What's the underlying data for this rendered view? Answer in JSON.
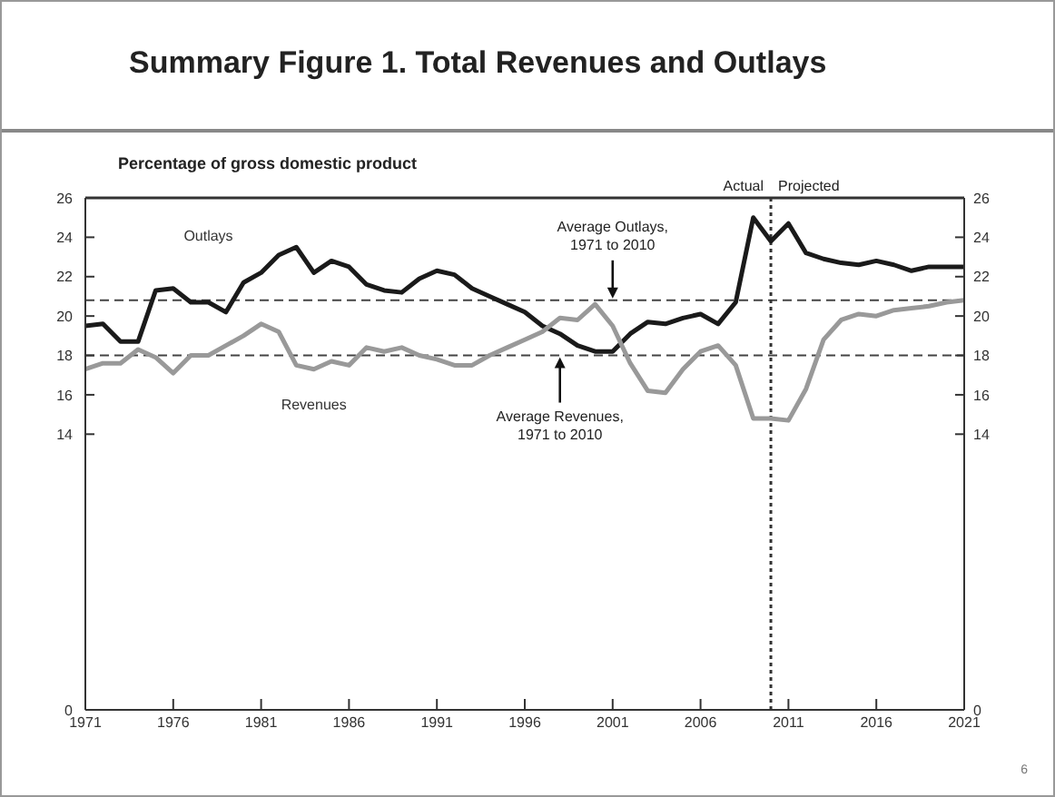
{
  "chart_data": {
    "type": "line",
    "title": "Summary Figure 1. Total Revenues and Outlays",
    "ylabel": "Percentage of gross domestic product",
    "x": [
      1971,
      1972,
      1973,
      1974,
      1975,
      1976,
      1977,
      1978,
      1979,
      1980,
      1981,
      1982,
      1983,
      1984,
      1985,
      1986,
      1987,
      1988,
      1989,
      1990,
      1991,
      1992,
      1993,
      1994,
      1995,
      1996,
      1997,
      1998,
      1999,
      2000,
      2001,
      2002,
      2003,
      2004,
      2005,
      2006,
      2007,
      2008,
      2009,
      2010,
      2011,
      2012,
      2013,
      2014,
      2015,
      2016,
      2017,
      2018,
      2019,
      2020,
      2021
    ],
    "series": [
      {
        "name": "Outlays",
        "color": "#1a1a1a",
        "values": [
          19.5,
          19.6,
          18.7,
          18.7,
          21.3,
          21.4,
          20.7,
          20.7,
          20.2,
          21.7,
          22.2,
          23.1,
          23.5,
          22.2,
          22.8,
          22.5,
          21.6,
          21.3,
          21.2,
          21.9,
          22.3,
          22.1,
          21.4,
          21.0,
          20.6,
          20.2,
          19.5,
          19.1,
          18.5,
          18.2,
          18.2,
          19.1,
          19.7,
          19.6,
          19.9,
          20.1,
          19.6,
          20.7,
          25.0,
          23.8,
          24.7,
          23.2,
          22.9,
          22.7,
          22.6,
          22.8,
          22.6,
          22.3,
          22.5,
          22.5,
          22.5
        ]
      },
      {
        "name": "Revenues",
        "color": "#999999",
        "values": [
          17.3,
          17.6,
          17.6,
          18.3,
          17.9,
          17.1,
          18.0,
          18.0,
          18.5,
          19.0,
          19.6,
          19.2,
          17.5,
          17.3,
          17.7,
          17.5,
          18.4,
          18.2,
          18.4,
          18.0,
          17.8,
          17.5,
          17.5,
          18.0,
          18.4,
          18.8,
          19.2,
          19.9,
          19.8,
          20.6,
          19.5,
          17.6,
          16.2,
          16.1,
          17.3,
          18.2,
          18.5,
          17.5,
          14.8,
          14.8,
          14.7,
          16.3,
          18.8,
          19.8,
          20.1,
          20.0,
          20.3,
          20.4,
          20.5,
          20.7,
          20.8
        ]
      }
    ],
    "xlim": [
      1971,
      2021
    ],
    "xticks": [
      1971,
      1976,
      1981,
      1986,
      1991,
      1996,
      2001,
      2006,
      2011,
      2016,
      2021
    ],
    "ylim": [
      0,
      26
    ],
    "yticks": [
      0,
      14,
      16,
      18,
      20,
      22,
      24,
      26
    ],
    "y2lim": [
      0,
      26
    ],
    "y2ticks": [
      0,
      14,
      16,
      18,
      20,
      22,
      24,
      26
    ],
    "ref_lines": [
      {
        "axis": "y",
        "value": 20.8,
        "color": "#444444",
        "line_style": "dashed"
      },
      {
        "axis": "y",
        "value": 18.0,
        "color": "#444444",
        "line_style": "dashed"
      },
      {
        "axis": "x",
        "value": 2010,
        "color": "#333333",
        "line_style": "dotted"
      }
    ],
    "annotations": [
      {
        "text": "Average Outlays, 1971 to 2010",
        "x": 2001,
        "y": 20.8
      },
      {
        "text": "Average Revenues, 1971 to 2010",
        "x": 1998,
        "y": 18.0
      },
      {
        "text": "Actual",
        "x": 2010,
        "y": 26
      },
      {
        "text": "Projected",
        "x": 2010,
        "y": 26
      },
      "6"
    ],
    "grid": false,
    "legend": false,
    "marker": "none",
    "line_style": "solid"
  }
}
